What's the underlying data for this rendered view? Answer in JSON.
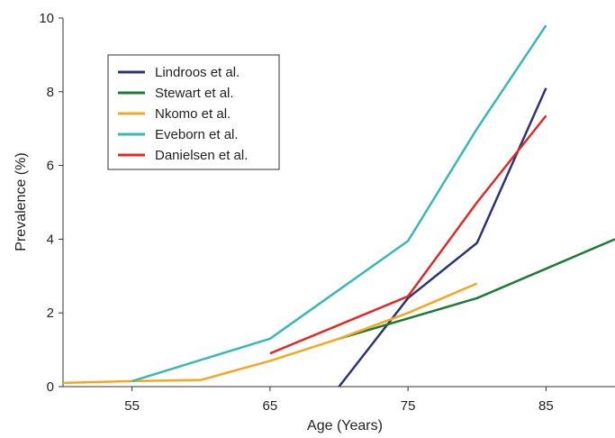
{
  "chart_data": {
    "type": "line",
    "title": "",
    "xlabel": "Age (Years)",
    "ylabel": "Prevalence (%)",
    "xlim": [
      50,
      90
    ],
    "ylim": [
      0,
      10
    ],
    "x_ticks": [
      55,
      65,
      75,
      85
    ],
    "y_ticks": [
      0,
      2,
      4,
      6,
      8,
      10
    ],
    "grid": false,
    "legend_position": "top-left",
    "series": [
      {
        "name": "Lindroos et al.",
        "color": "#2b3573",
        "points": [
          [
            70,
            0
          ],
          [
            75,
            2.4
          ],
          [
            80,
            3.9
          ],
          [
            85,
            8.1
          ]
        ]
      },
      {
        "name": "Stewart et al.",
        "color": "#1e7a34",
        "points": [
          [
            70,
            1.3
          ],
          [
            80,
            2.4
          ],
          [
            90,
            4.0
          ]
        ]
      },
      {
        "name": "Nkomo et al.",
        "color": "#f5a623",
        "points": [
          [
            50,
            0.1
          ],
          [
            55,
            0.15
          ],
          [
            60,
            0.18
          ],
          [
            65,
            0.7
          ],
          [
            70,
            1.3
          ],
          [
            75,
            2.0
          ],
          [
            80,
            2.8
          ]
        ]
      },
      {
        "name": "Eveborn et al.",
        "color": "#3ab7b7",
        "points": [
          [
            55,
            0.15
          ],
          [
            65,
            1.3
          ],
          [
            75,
            3.95
          ],
          [
            80,
            7.0
          ],
          [
            85,
            9.8
          ]
        ]
      },
      {
        "name": "Danielsen et al.",
        "color": "#e02a28",
        "points": [
          [
            65,
            0.9
          ],
          [
            75,
            2.45
          ],
          [
            80,
            5.0
          ],
          [
            85,
            7.35
          ]
        ]
      }
    ]
  }
}
